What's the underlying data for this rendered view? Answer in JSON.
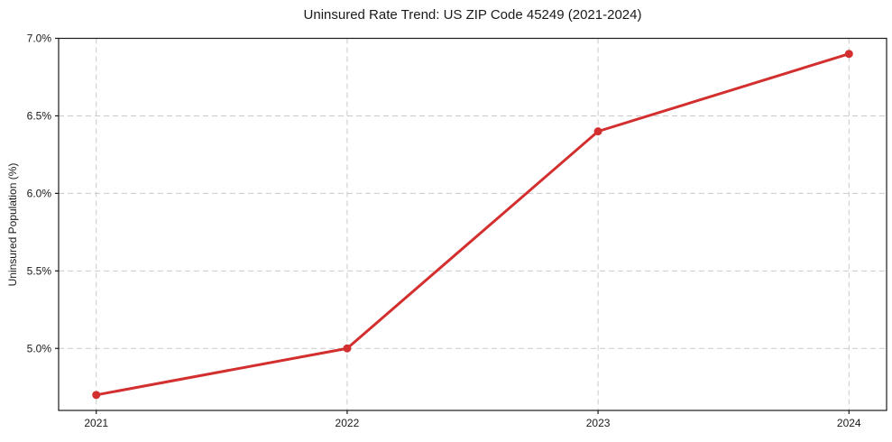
{
  "page": {
    "background": "#ffffff"
  },
  "chart_data": {
    "type": "line",
    "title": "Uninsured Rate Trend: US ZIP Code 45249 (2021-2024)",
    "xlabel": "",
    "ylabel": "Uninsured Population (%)",
    "x": [
      2021,
      2022,
      2023,
      2024
    ],
    "series": [
      {
        "name": "uninsured-rate",
        "values": [
          4.7,
          5.0,
          6.4,
          6.9
        ],
        "color": "#d32f2f",
        "marker": "circle",
        "marker_radius": 4.5,
        "line_width": 3
      }
    ],
    "xticks": [
      {
        "value": 2021,
        "label": "2021"
      },
      {
        "value": 2022,
        "label": "2022"
      },
      {
        "value": 2023,
        "label": "2023"
      },
      {
        "value": 2024,
        "label": "2024"
      }
    ],
    "yticks": [
      {
        "value": 5.0,
        "label": "5.0%"
      },
      {
        "value": 5.5,
        "label": "5.5%"
      },
      {
        "value": 6.0,
        "label": "6.0%"
      },
      {
        "value": 6.5,
        "label": "6.5%"
      },
      {
        "value": 7.0,
        "label": "7.0%"
      }
    ],
    "xlim": [
      2020.85,
      2024.15
    ],
    "ylim": [
      4.6,
      7.0
    ],
    "grid": true,
    "grid_style": "dashed",
    "legend": "none",
    "colors": {
      "grid": "#c9c9c9",
      "spine": "#1a1a1a",
      "text": "#1a1a1a"
    }
  }
}
